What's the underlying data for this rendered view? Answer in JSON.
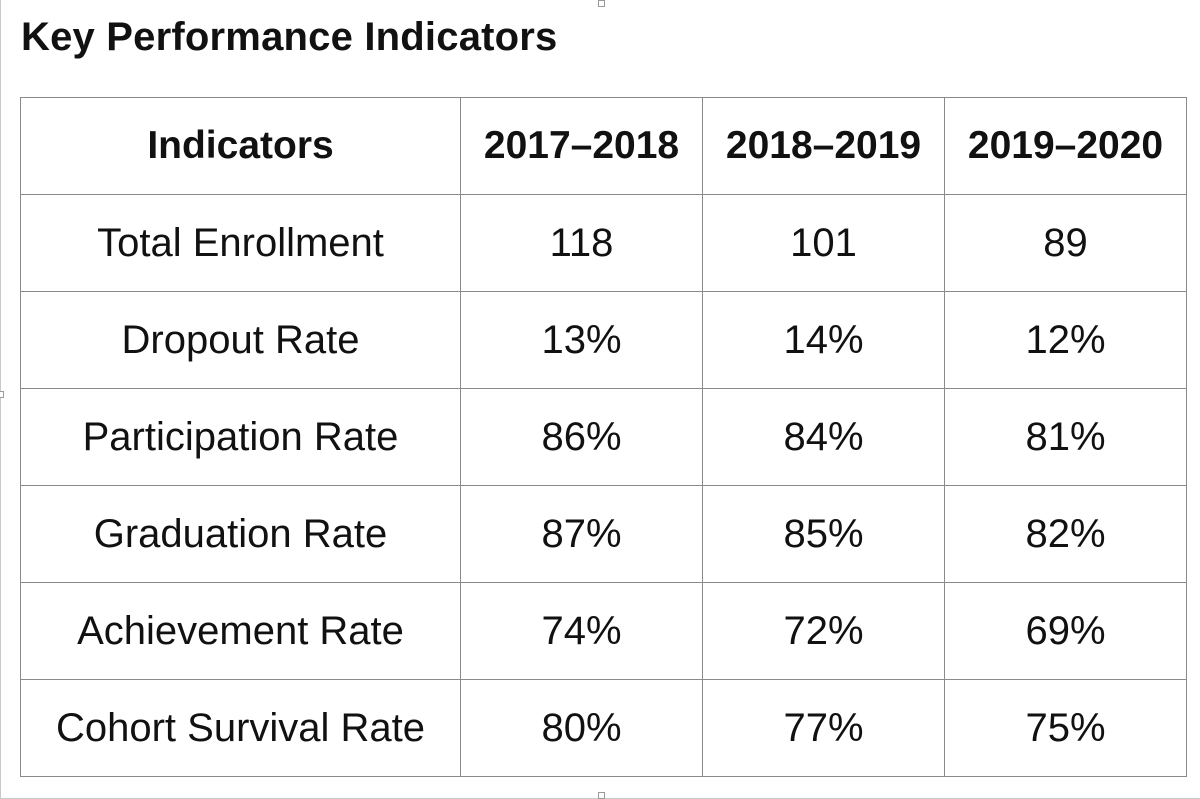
{
  "document": {
    "title": "Key Performance Indicators"
  },
  "table": {
    "headers": [
      "Indicators",
      "2017–2018",
      "2018–2019",
      "2019–2020"
    ],
    "rows": [
      {
        "indicator": "Total Enrollment",
        "values": [
          "118",
          "101",
          "89"
        ]
      },
      {
        "indicator": "Dropout Rate",
        "values": [
          "13%",
          "14%",
          "12%"
        ]
      },
      {
        "indicator": "Participation Rate",
        "values": [
          "86%",
          "84%",
          "81%"
        ]
      },
      {
        "indicator": "Graduation Rate",
        "values": [
          "87%",
          "85%",
          "82%"
        ]
      },
      {
        "indicator": "Achievement Rate",
        "values": [
          "74%",
          "72%",
          "69%"
        ]
      },
      {
        "indicator": "Cohort Survival Rate",
        "values": [
          "80%",
          "77%",
          "75%"
        ]
      }
    ]
  },
  "chart_data": {
    "type": "table",
    "title": "Key Performance Indicators",
    "columns": [
      "Indicators",
      "2017–2018",
      "2018–2019",
      "2019–2020"
    ],
    "rows": [
      [
        "Total Enrollment",
        "118",
        "101",
        "89"
      ],
      [
        "Dropout Rate",
        "13%",
        "14%",
        "12%"
      ],
      [
        "Participation Rate",
        "86%",
        "84%",
        "81%"
      ],
      [
        "Graduation Rate",
        "87%",
        "85%",
        "82%"
      ],
      [
        "Achievement Rate",
        "74%",
        "72%",
        "69%"
      ],
      [
        "Cohort Survival Rate",
        "80%",
        "77%",
        "75%"
      ]
    ]
  }
}
